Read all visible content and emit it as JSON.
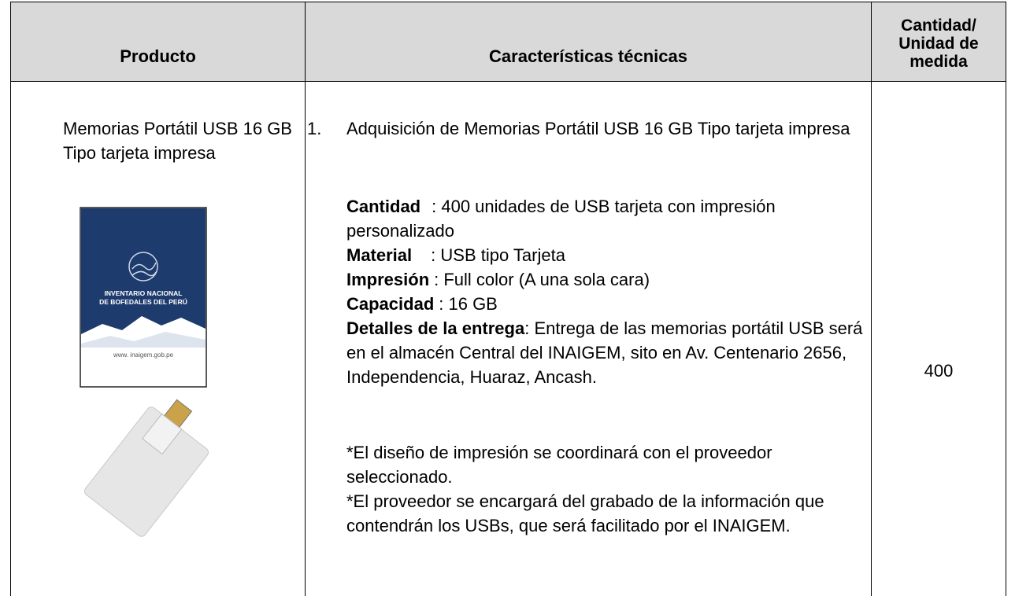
{
  "table": {
    "header": [
      "Producto",
      "Características técnicas",
      "Cantidad/ Unidad de medida"
    ],
    "rows": [
      {
        "product": {
          "name": "Memorias Portátil USB 16 GB Tipo tarjeta impresa",
          "image_text": [
            "INVENTARIO NACIONAL",
            "DE BOFEDALES DEL PERÚ",
            "www. inaigem.gob.pe"
          ]
        },
        "specs": {
          "number": "1.",
          "item": "Adquisición de Memorias Portátil USB  16 GB Tipo tarjeta impresa",
          "fields": [
            {
              "label": "Cantidad",
              "value": ": 400 unidades de USB tarjeta con impresión personalizado"
            },
            {
              "label": "Material",
              "value": ": USB tipo Tarjeta"
            },
            {
              "label": "Impresión",
              "value": ": Full color (A una sola cara)"
            },
            {
              "label": "Capacidad",
              "value": ": 16 GB"
            },
            {
              "label": "Detalles de la entrega",
              "value": ": Entrega de las memorias portátil USB será en el almacén Central del INAIGEM, sito en Av. Centenario 2656, Independencia, Huaraz, Ancash."
            }
          ],
          "notes": [
            "*El diseño de impresión se coordinará con el proveedor seleccionado.",
            "*El proveedor se encargará del grabado de la información que contendrán los USBs, que será facilitado por el INAIGEM."
          ]
        },
        "quantity": "400"
      }
    ]
  }
}
